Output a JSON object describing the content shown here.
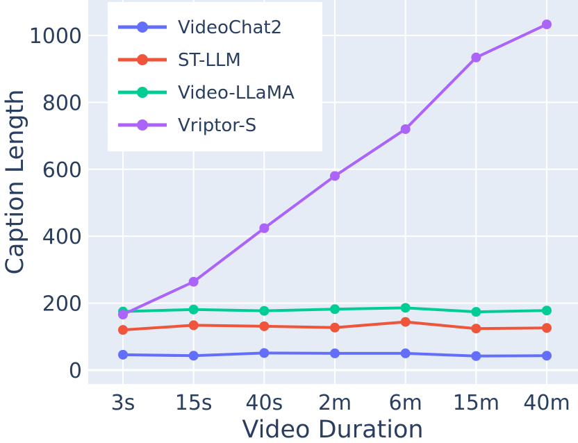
{
  "chart_data": {
    "type": "line",
    "categories": [
      "3s",
      "15s",
      "40s",
      "2m",
      "6m",
      "15m",
      "40m"
    ],
    "xlabel": "Video Duration",
    "ylabel": "Caption Length",
    "ylim": [
      -30,
      1100
    ],
    "yticks": [
      0,
      200,
      400,
      600,
      800,
      1000
    ],
    "grid": true,
    "legend_position": "top-left",
    "background": "#e5ecf6",
    "series": [
      {
        "name": "VideoChat2",
        "color": "#636efa",
        "values": [
          46,
          43,
          51,
          50,
          50,
          42,
          43
        ]
      },
      {
        "name": "ST-LLM",
        "color": "#ef553b",
        "values": [
          120,
          134,
          131,
          127,
          144,
          124,
          126
        ]
      },
      {
        "name": "Video-LLaMA",
        "color": "#00cc96",
        "values": [
          175,
          181,
          177,
          182,
          186,
          174,
          178
        ]
      },
      {
        "name": "Vriptor-S",
        "color": "#ab63fa",
        "values": [
          166,
          264,
          424,
          580,
          720,
          934,
          1033
        ]
      }
    ]
  }
}
